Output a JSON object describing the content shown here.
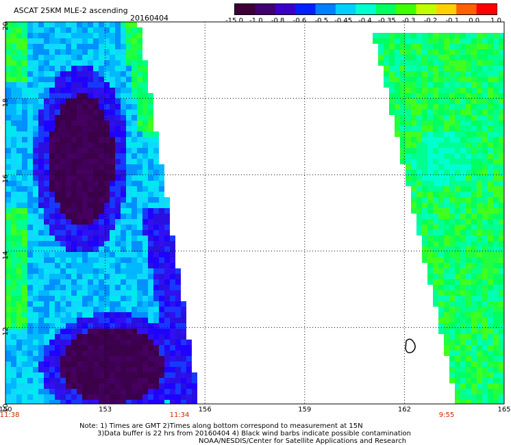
{
  "header": {
    "title": "ASCAT 25KM MLE-2 ascending",
    "date": "20160404"
  },
  "colorbar": {
    "labels": [
      "-15.0",
      "-1.0",
      "-0.8",
      "-0.6",
      "-0.5",
      "-0.45",
      "-0.4",
      "-0.35",
      "-0.3",
      "-0.2",
      "-0.1",
      "0.0",
      "1.0"
    ],
    "colors": [
      "#3b0036",
      "#400070",
      "#3a00c8",
      "#0020ff",
      "#0080ff",
      "#00d0ff",
      "#00ffd0",
      "#00ff60",
      "#40ff00",
      "#c0ff00",
      "#ffd000",
      "#ff6000",
      "#ff0000"
    ]
  },
  "axes": {
    "x_ticks": [
      "150",
      "153",
      "156",
      "159",
      "162",
      "165"
    ],
    "y_ticks": [
      "20",
      "18",
      "16",
      "14",
      "12",
      "10"
    ]
  },
  "times": {
    "left_start": "11:38",
    "left_end": "11:34",
    "right": "9:55"
  },
  "notes": {
    "line1": "Note: 1) Times are GMT 2)Times along bottom correspond to measurement at 15N",
    "line2": "3)Data buffer is 22 hrs from 20160404 4) Black wind barbs indicate possible contamination",
    "line3": "NOAA/NESDIS/Center for Satellite Applications and Research"
  }
}
